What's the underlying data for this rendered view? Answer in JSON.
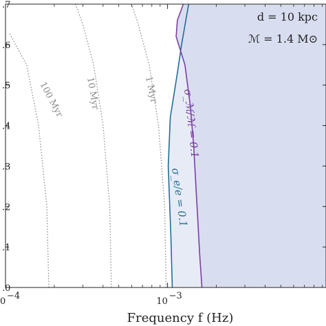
{
  "chart_data": {
    "type": "line",
    "xlabel": "Frequency f (Hz)",
    "x_scale": "log",
    "xlim": [
      0.0001,
      0.0095
    ],
    "ylim": [
      0.0,
      0.7
    ],
    "x_ticks": [
      {
        "value": 0.0001,
        "label": "10",
        "exp": "−4"
      },
      {
        "value": 0.001,
        "label": "10",
        "exp": "−3"
      }
    ],
    "y_ticks": [
      {
        "value": 0.0,
        "label": ".0"
      },
      {
        "value": 0.1,
        "label": ".1"
      },
      {
        "value": 0.2,
        "label": ".2"
      },
      {
        "value": 0.3,
        "label": ".3"
      },
      {
        "value": 0.4,
        "label": ".4"
      },
      {
        "value": 0.5,
        "label": ".5"
      },
      {
        "value": 0.6,
        "label": ".6"
      },
      {
        "value": 0.7,
        "label": ".7"
      }
    ],
    "annotations": [
      {
        "text": "d = 10 kpc"
      },
      {
        "text": "ℳ = 1.4 M⊙"
      }
    ],
    "isochrones": [
      {
        "name": "100 Myr",
        "color": "#8a8a8a",
        "points": [
          [
            0.000185,
            0.0
          ],
          [
            0.00018,
            0.2
          ],
          [
            0.00016,
            0.4
          ],
          [
            0.000135,
            0.55
          ],
          [
            0.000105,
            0.63
          ]
        ]
      },
      {
        "name": "10 Myr",
        "color": "#8a8a8a",
        "points": [
          [
            0.00045,
            0.0
          ],
          [
            0.00044,
            0.2
          ],
          [
            0.0004,
            0.4
          ],
          [
            0.00035,
            0.55
          ],
          [
            0.0003,
            0.65
          ],
          [
            0.00027,
            0.7
          ]
        ]
      },
      {
        "name": "1 Myr",
        "color": "#8a8a8a",
        "points": [
          [
            0.00098,
            0.0
          ],
          [
            0.00096,
            0.2
          ],
          [
            0.00088,
            0.4
          ],
          [
            0.00077,
            0.55
          ],
          [
            0.00066,
            0.65
          ],
          [
            0.0006,
            0.7
          ]
        ]
      }
    ],
    "series": [
      {
        "name": "σ_e/e = 0.1",
        "color": "#1f6e94",
        "points": [
          [
            0.00107,
            0.0
          ],
          [
            0.00105,
            0.12
          ],
          [
            0.00101,
            0.3
          ],
          [
            0.00104,
            0.42
          ],
          [
            0.00115,
            0.53
          ],
          [
            0.00122,
            0.6
          ],
          [
            0.00135,
            0.7
          ]
        ]
      },
      {
        "name": "σ_ℳ/ℳ = 0.1",
        "color": "#7a3fa0",
        "points": [
          [
            0.00163,
            0.0
          ],
          [
            0.00158,
            0.08
          ],
          [
            0.00152,
            0.2
          ],
          [
            0.00145,
            0.35
          ],
          [
            0.00138,
            0.45
          ],
          [
            0.00128,
            0.55
          ],
          [
            0.00113,
            0.62
          ],
          [
            0.00115,
            0.66
          ],
          [
            0.00125,
            0.7
          ]
        ]
      }
    ],
    "shading": {
      "color_light": "#e7ebf6",
      "color_dark": "#d9ddf0"
    }
  }
}
